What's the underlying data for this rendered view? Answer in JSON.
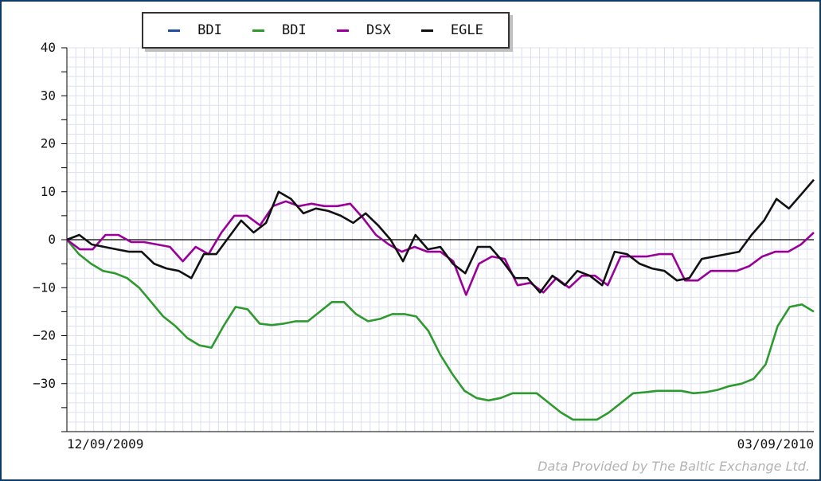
{
  "chart_data": {
    "type": "line",
    "ylim": [
      -40,
      40
    ],
    "yticks": [
      40,
      30,
      20,
      10,
      0,
      -10,
      -20,
      -30
    ],
    "ytick_labels": [
      "40",
      "30",
      "20",
      "10",
      "0",
      "−10",
      "−20",
      "−30"
    ],
    "x_labels": {
      "start": "12/09/2009",
      "end": "03/09/2010"
    },
    "grid": true,
    "legend_placement": "top-center",
    "zero_line": true,
    "series": [
      {
        "name": "BDI",
        "color": "#1f4ea3",
        "values": []
      },
      {
        "name": "BDI",
        "color": "#2e9a2e",
        "values": [
          0,
          -3,
          -5,
          -6.5,
          -7,
          -8,
          -10,
          -13,
          -16,
          -18,
          -20.5,
          -22,
          -22.5,
          -18,
          -14,
          -14.5,
          -17.5,
          -17.8,
          -17.5,
          -17,
          -17,
          -15,
          -13,
          -13,
          -15.5,
          -17,
          -16.5,
          -15.5,
          -15.5,
          -16,
          -19,
          -24,
          -28,
          -31.5,
          -33,
          -33.5,
          -33,
          -32,
          -32,
          -32,
          -34,
          -36,
          -37.5,
          -37.5,
          -37.5,
          -36,
          -34,
          -32,
          -31.8,
          -31.5,
          -31.5,
          -31.5,
          -32,
          -31.8,
          -31.3,
          -30.5,
          -30,
          -29,
          -26,
          -18,
          -14,
          -13.5,
          -15
        ]
      },
      {
        "name": "DSX",
        "color": "#990099",
        "values": [
          0,
          -2,
          -2,
          1,
          1,
          -0.5,
          -0.5,
          -1,
          -1.5,
          -4.5,
          -1.5,
          -3,
          1.5,
          5,
          5,
          3,
          7,
          8,
          7,
          7.5,
          7,
          7,
          7.5,
          4.5,
          1,
          -1,
          -2.5,
          -1.5,
          -2.5,
          -2.5,
          -4.5,
          -11.5,
          -5,
          -3.5,
          -4,
          -9.5,
          -9,
          -11,
          -8,
          -10,
          -7.5,
          -7.5,
          -9.5,
          -3.5,
          -3.5,
          -3.5,
          -3,
          -3,
          -8.5,
          -8.5,
          -6.5,
          -6.5,
          -6.5,
          -5.5,
          -3.5,
          -2.5,
          -2.5,
          -1,
          1.5
        ]
      },
      {
        "name": "EGLE",
        "color": "#111111",
        "values": [
          0,
          1,
          -1,
          -1.5,
          -2,
          -2.5,
          -2.5,
          -5,
          -6,
          -6.5,
          -8,
          -3,
          -3,
          0.5,
          4,
          1.5,
          3.5,
          10,
          8.5,
          5.5,
          6.5,
          6,
          5,
          3.5,
          5.5,
          3,
          0,
          -4.5,
          1,
          -2,
          -1.5,
          -5,
          -7,
          -1.5,
          -1.5,
          -4.5,
          -8,
          -8,
          -11,
          -7.5,
          -9.5,
          -6.5,
          -7.5,
          -9.5,
          -2.5,
          -3,
          -5,
          -6,
          -6.5,
          -8.5,
          -8,
          -4,
          -3.5,
          -3,
          -2.5,
          1,
          4,
          8.5,
          6.5,
          9.5,
          12.5
        ]
      }
    ]
  },
  "credit": "Data Provided by The Baltic Exchange Ltd."
}
